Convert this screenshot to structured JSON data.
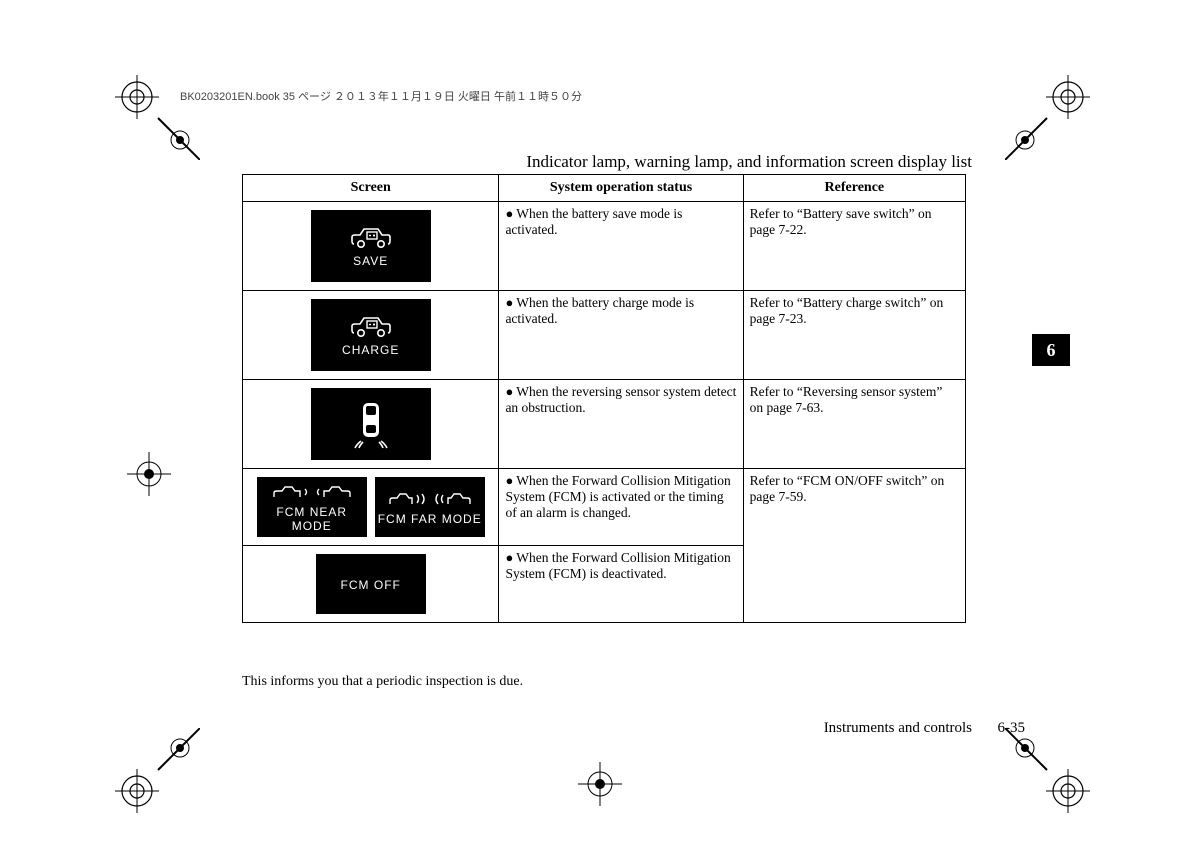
{
  "meta": {
    "header_line": "BK0203201EN.book  35 ページ   ２０１３年１１月１９日   火曜日   午前１１時５０分"
  },
  "page_title": "Indicator lamp, warning lamp, and information screen display list",
  "table": {
    "headers": {
      "screen": "Screen",
      "status": "System operation status",
      "reference": "Reference"
    },
    "rows": [
      {
        "icons": [
          {
            "label": "SAVE",
            "glyph": "battery-car"
          }
        ],
        "status": "When the battery save mode is activated.",
        "reference": "Refer to “Battery save switch” on page 7-22."
      },
      {
        "icons": [
          {
            "label": "CHARGE",
            "glyph": "battery-car"
          }
        ],
        "status": "When the battery charge mode is activated.",
        "reference": "Refer to “Battery charge switch” on page 7-23."
      },
      {
        "icons": [
          {
            "label": "",
            "glyph": "car-sensor"
          }
        ],
        "status": "When the reversing sensor system detect an obstruction.",
        "reference": "Refer to “Reversing sensor system” on page 7-63."
      },
      {
        "icons": [
          {
            "label": "FCM NEAR MODE",
            "glyph": "fcm-near",
            "size": "small"
          },
          {
            "label": "FCM FAR MODE",
            "glyph": "fcm-far",
            "size": "small"
          }
        ],
        "status": "When the Forward Collision Mitigation System (FCM) is activated or the timing of an alarm is changed.",
        "reference": "Refer to “FCM ON/OFF switch” on page 7-59."
      },
      {
        "icons": [
          {
            "label": "FCM OFF",
            "glyph": "none",
            "size": "small"
          }
        ],
        "status": "When the Forward Collision Mitigation System (FCM) is deactivated.",
        "reference": ""
      }
    ]
  },
  "footnote": "This informs you that a periodic inspection is due.",
  "section_tab": "6",
  "footer": {
    "section": "Instruments and controls",
    "page": "6-35"
  },
  "colors": {
    "page_bg": "#ffffff",
    "text": "#000000",
    "tile_bg": "#000000",
    "tile_fg": "#ffffff",
    "border": "#000000"
  }
}
